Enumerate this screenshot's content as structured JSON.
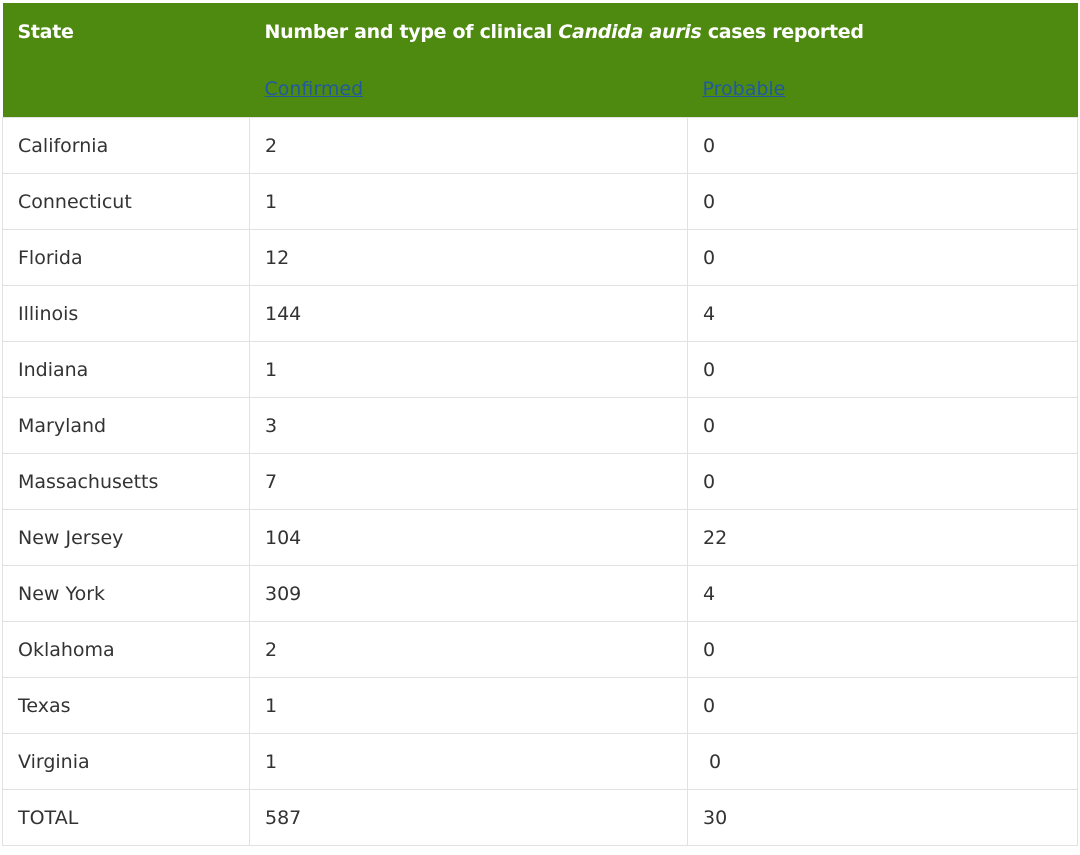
{
  "table": {
    "headers": {
      "state": "State",
      "title_prefix": "Number and type of clinical ",
      "title_em": "Candida auris",
      "title_suffix": " cases reported",
      "confirmed": "Confirmed",
      "probable": "Probable"
    },
    "rows": [
      {
        "state": "California",
        "confirmed": "2",
        "probable": "0"
      },
      {
        "state": "Connecticut",
        "confirmed": "1",
        "probable": "0"
      },
      {
        "state": "Florida",
        "confirmed": "12",
        "probable": "0"
      },
      {
        "state": "Illinois",
        "confirmed": "144",
        "probable": "4"
      },
      {
        "state": "Indiana",
        "confirmed": "1",
        "probable": "0"
      },
      {
        "state": "Maryland",
        "confirmed": "3",
        "probable": "0"
      },
      {
        "state": "Massachusetts",
        "confirmed": "7",
        "probable": "0"
      },
      {
        "state": "New Jersey",
        "confirmed": "104",
        "probable": "22"
      },
      {
        "state": "New York",
        "confirmed": "309",
        "probable": "4"
      },
      {
        "state": "Oklahoma",
        "confirmed": "2",
        "probable": "0"
      },
      {
        "state": "Texas",
        "confirmed": "1",
        "probable": "0"
      },
      {
        "state": "Virginia",
        "confirmed": "1",
        "probable": " 0"
      },
      {
        "state": "TOTAL",
        "confirmed": "587",
        "probable": "30"
      }
    ]
  },
  "colors": {
    "header_bg": "#4f8a10",
    "header_text": "#ffffff",
    "link": "#1f5aa0",
    "border": "#e1e1e1",
    "cell_text": "#333333"
  }
}
